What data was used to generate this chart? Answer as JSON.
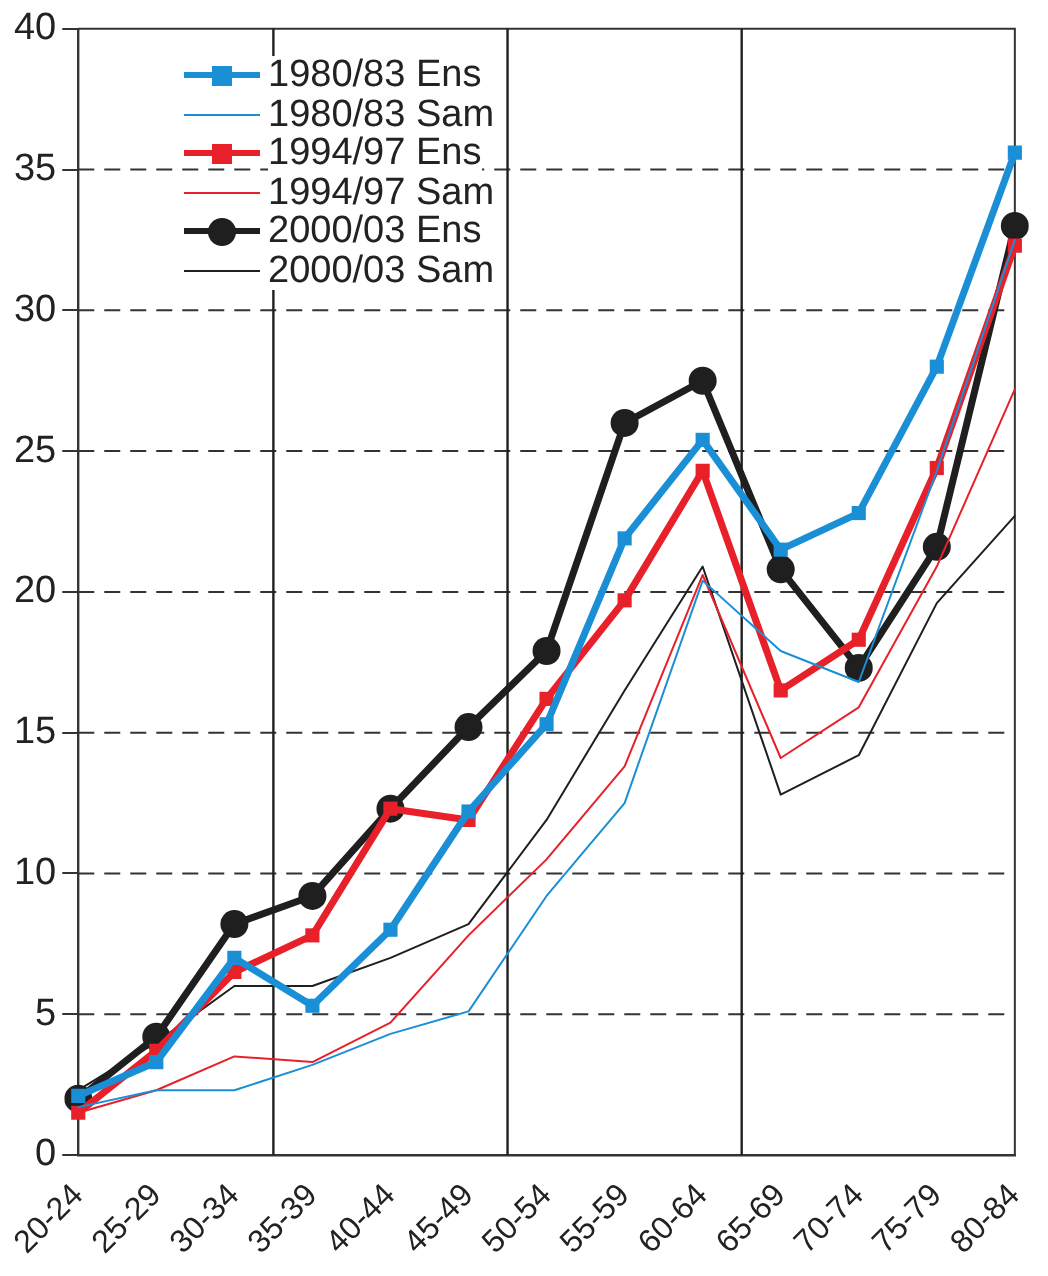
{
  "chart_data": {
    "type": "line",
    "categories": [
      "20-24",
      "25-29",
      "30-34",
      "35-39",
      "40-44",
      "45-49",
      "50-54",
      "55-59",
      "60-64",
      "65-69",
      "70-74",
      "75-79",
      "80-84"
    ],
    "series": [
      {
        "name": "1980/83 Ens",
        "color": "#1a8fd6",
        "marker": "square",
        "values": [
          2.1,
          3.3,
          7.0,
          5.3,
          8.0,
          12.2,
          15.3,
          21.9,
          25.4,
          21.5,
          22.8,
          28.0,
          35.6
        ]
      },
      {
        "name": "1980/83 Sam",
        "color": "#1a8fd6",
        "marker": "none",
        "values": [
          1.7,
          2.3,
          2.3,
          3.2,
          4.3,
          5.1,
          9.2,
          12.5,
          20.4,
          17.9,
          16.8,
          24.3,
          32.5
        ]
      },
      {
        "name": "1994/97 Ens",
        "color": "#e8202a",
        "marker": "square",
        "values": [
          1.5,
          3.7,
          6.5,
          7.8,
          12.3,
          11.9,
          16.2,
          19.7,
          24.3,
          16.5,
          18.3,
          24.4,
          32.3
        ]
      },
      {
        "name": "1994/97 Sam",
        "color": "#e8202a",
        "marker": "none",
        "values": [
          1.5,
          2.3,
          3.5,
          3.3,
          4.7,
          7.8,
          10.5,
          13.8,
          20.6,
          14.1,
          15.9,
          20.9,
          27.2
        ]
      },
      {
        "name": "2000/03 Ens",
        "color": "#1f1f1f",
        "marker": "circle",
        "values": [
          2.0,
          4.2,
          8.2,
          9.2,
          12.3,
          15.2,
          17.9,
          26.0,
          27.5,
          20.8,
          17.3,
          21.6,
          33.0
        ]
      },
      {
        "name": "2000/03 Sam",
        "color": "#1f1f1f",
        "marker": "none",
        "values": [
          2.3,
          4.0,
          6.0,
          6.0,
          7.0,
          8.2,
          11.9,
          16.5,
          20.9,
          12.8,
          14.2,
          19.6,
          22.7
        ]
      }
    ],
    "ylim": [
      0,
      40
    ],
    "yticks": [
      0,
      5,
      10,
      15,
      20,
      25,
      30,
      35,
      40
    ],
    "grid": "y",
    "line_style": "solid",
    "legend": "top left"
  }
}
